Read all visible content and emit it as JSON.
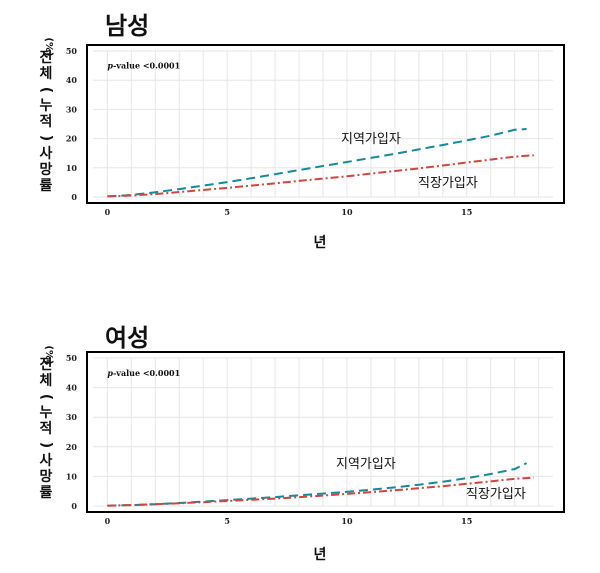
{
  "chart_data": [
    {
      "type": "line",
      "title": "남성",
      "xlabel": "년",
      "ylabel": "전체(누적)사망률",
      "yunit": "(%)",
      "annotation": "p-value <0.0001",
      "xlim": [
        -0.6,
        18.6
      ],
      "ylim": [
        0,
        50
      ],
      "xticks": [
        0,
        5,
        10,
        15
      ],
      "yticks": [
        0,
        10,
        20,
        30,
        40,
        50
      ],
      "grid": true,
      "series": [
        {
          "name": "지역가입자",
          "color": "#17899a",
          "dash": "dashed",
          "x": [
            0,
            1,
            2,
            3,
            4,
            5,
            6,
            7,
            8,
            9,
            10,
            11,
            12,
            13,
            14,
            15,
            16,
            17,
            17.5
          ],
          "y": [
            0.2,
            0.7,
            1.6,
            2.7,
            3.9,
            5.1,
            6.4,
            7.8,
            9.2,
            10.6,
            12.0,
            13.4,
            14.8,
            16.3,
            17.8,
            19.4,
            21.0,
            23.0,
            23.3
          ]
        },
        {
          "name": "직장가입자",
          "color": "#d0463f",
          "dash": "dashdot",
          "x": [
            0,
            1,
            2,
            3,
            4,
            5,
            6,
            7,
            8,
            9,
            10,
            11,
            12,
            13,
            14,
            15,
            16,
            17,
            17.8
          ],
          "y": [
            0.2,
            0.5,
            1.0,
            1.7,
            2.4,
            3.1,
            3.9,
            4.7,
            5.5,
            6.3,
            7.1,
            8.0,
            8.9,
            9.8,
            10.8,
            11.8,
            12.8,
            13.8,
            14.3
          ]
        }
      ]
    },
    {
      "type": "line",
      "title": "여성",
      "xlabel": "년",
      "ylabel": "전체(누적)사망률",
      "yunit": "(%)",
      "annotation": "p-value <0.0001",
      "xlim": [
        -0.6,
        18.6
      ],
      "ylim": [
        0,
        50
      ],
      "xticks": [
        0,
        5,
        10,
        15
      ],
      "yticks": [
        0,
        10,
        20,
        30,
        40,
        50
      ],
      "grid": true,
      "series": [
        {
          "name": "지역가입자",
          "color": "#17899a",
          "dash": "dashed",
          "x": [
            0,
            1,
            2,
            3,
            4,
            5,
            6,
            7,
            8,
            9,
            10,
            11,
            12,
            13,
            14,
            15,
            16,
            17,
            17.5
          ],
          "y": [
            0.1,
            0.3,
            0.6,
            1.0,
            1.5,
            2.0,
            2.5,
            3.0,
            3.6,
            4.2,
            4.8,
            5.5,
            6.3,
            7.2,
            8.2,
            9.4,
            10.8,
            12.5,
            14.5
          ]
        },
        {
          "name": "직장가입자",
          "color": "#d0463f",
          "dash": "dashdot",
          "x": [
            0,
            1,
            2,
            3,
            4,
            5,
            6,
            7,
            8,
            9,
            10,
            11,
            12,
            13,
            14,
            15,
            16,
            17,
            17.8
          ],
          "y": [
            0.1,
            0.3,
            0.6,
            0.9,
            1.3,
            1.7,
            2.1,
            2.5,
            3.0,
            3.5,
            4.1,
            4.7,
            5.3,
            6.0,
            6.7,
            7.5,
            8.3,
            9.2,
            9.6
          ]
        }
      ]
    }
  ]
}
